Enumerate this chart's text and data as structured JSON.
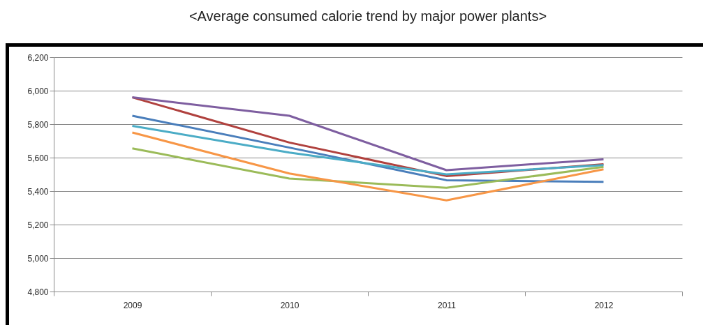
{
  "chart_data": {
    "type": "line",
    "title": "<Average consumed calorie trend by major power plants>",
    "categories": [
      "2009",
      "2010",
      "2011",
      "2012"
    ],
    "series": [
      {
        "color": "#4a7ebb",
        "values": [
          5850,
          5660,
          5465,
          5455
        ]
      },
      {
        "color": "#b0413e",
        "values": [
          5960,
          5690,
          5490,
          5560
        ]
      },
      {
        "color": "#9bbb59",
        "values": [
          5655,
          5475,
          5420,
          5545
        ]
      },
      {
        "color": "#7e5ea0",
        "values": [
          5960,
          5850,
          5525,
          5590
        ]
      },
      {
        "color": "#4bacc6",
        "values": [
          5790,
          5630,
          5500,
          5555
        ]
      },
      {
        "color": "#f79646",
        "values": [
          5750,
          5505,
          5345,
          5530
        ]
      }
    ],
    "ylim": [
      4800,
      6200
    ],
    "yticks": [
      {
        "value": 4800,
        "label": "4,800"
      },
      {
        "value": 5000,
        "label": "5,000"
      },
      {
        "value": 5200,
        "label": "5,200"
      },
      {
        "value": 5400,
        "label": "5,400"
      },
      {
        "value": 5600,
        "label": "5,600"
      },
      {
        "value": 5800,
        "label": "5,800"
      },
      {
        "value": 6000,
        "label": "6,000"
      },
      {
        "value": 6200,
        "label": "6,200"
      }
    ],
    "grid": "y",
    "legend": false,
    "marker": "none",
    "line_style": "solid"
  }
}
